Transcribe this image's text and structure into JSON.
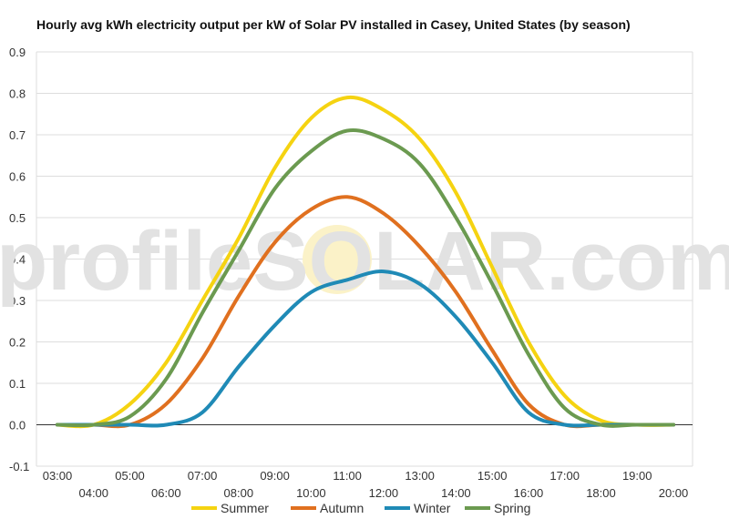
{
  "chart_data": {
    "type": "line",
    "title": "Hourly avg kWh electricity output per kW of Solar PV installed in Casey, United States (by season)",
    "watermark": "profileSOLAR.com",
    "x": [
      "03:00",
      "04:00",
      "05:00",
      "06:00",
      "07:00",
      "08:00",
      "09:00",
      "10:00",
      "11:00",
      "12:00",
      "13:00",
      "14:00",
      "15:00",
      "16:00",
      "17:00",
      "18:00",
      "19:00",
      "20:00"
    ],
    "ylim": [
      -0.1,
      0.9
    ],
    "yticks": [
      "-0.1",
      "0.0",
      "0.1",
      "0.2",
      "0.3",
      "0.4",
      "0.5",
      "0.6",
      "0.7",
      "0.8",
      "0.9"
    ],
    "grid": true,
    "legend_position": "bottom",
    "series": [
      {
        "name": "Summer",
        "color": "#f5d311",
        "values": [
          0.0,
          0.0,
          0.05,
          0.15,
          0.3,
          0.45,
          0.62,
          0.74,
          0.79,
          0.76,
          0.69,
          0.56,
          0.38,
          0.2,
          0.07,
          0.01,
          0.0,
          0.0
        ]
      },
      {
        "name": "Autumn",
        "color": "#e0701f",
        "values": [
          0.0,
          0.0,
          0.0,
          0.05,
          0.16,
          0.31,
          0.44,
          0.52,
          0.55,
          0.51,
          0.43,
          0.32,
          0.18,
          0.05,
          0.0,
          0.0,
          0.0,
          0.0
        ]
      },
      {
        "name": "Winter",
        "color": "#1f8ab6",
        "values": [
          0.0,
          0.0,
          0.0,
          0.0,
          0.03,
          0.14,
          0.24,
          0.32,
          0.35,
          0.37,
          0.34,
          0.26,
          0.15,
          0.03,
          0.0,
          0.0,
          0.0,
          0.0
        ]
      },
      {
        "name": "Spring",
        "color": "#6b9a50",
        "values": [
          0.0,
          0.0,
          0.02,
          0.11,
          0.27,
          0.42,
          0.57,
          0.66,
          0.71,
          0.69,
          0.63,
          0.5,
          0.34,
          0.17,
          0.04,
          0.0,
          0.0,
          0.0
        ]
      }
    ]
  }
}
